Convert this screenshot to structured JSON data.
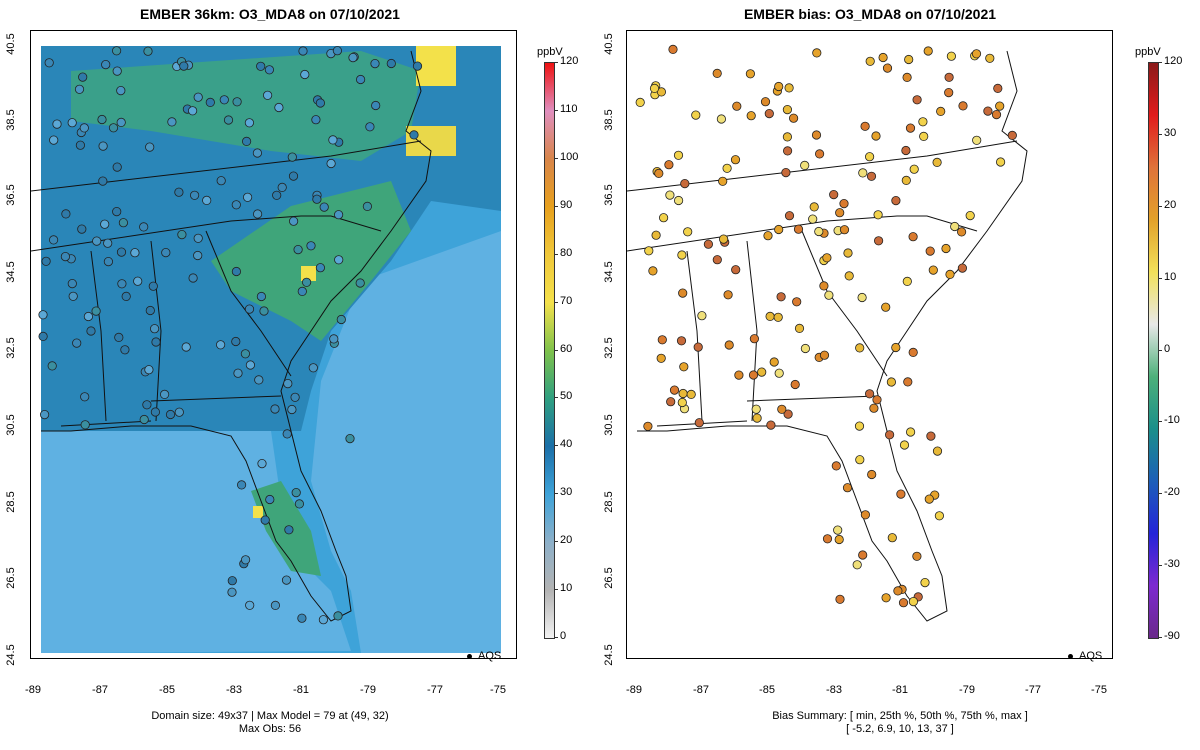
{
  "left": {
    "title": "EMBER 36km: O3_MDA8 on 07/10/2021",
    "footer_line1": "Domain size: 49x37 | Max Model = 79 at (49, 32)",
    "footer_line2": "Max Obs: 56",
    "legend_label": "AQS",
    "colorbar": {
      "unit": "ppbV",
      "ticks": [
        "120",
        "110",
        "100",
        "90",
        "80",
        "70",
        "60",
        "50",
        "40",
        "30",
        "20",
        "10",
        "0"
      ],
      "stops": [
        "#ee1111",
        "#e08fbf",
        "#d8854a",
        "#e7a01d",
        "#f0c83a",
        "#f4e14b",
        "#7fc24b",
        "#2f9f80",
        "#1b6fa8",
        "#3ea3d9",
        "#8db0c9",
        "#b3b3b3",
        "#f2f2f2"
      ]
    }
  },
  "right": {
    "title": "EMBER bias: O3_MDA8 on 07/10/2021",
    "footer_line1": "Bias Summary: [ min, 25th %, 50th %, 75th %, max ]",
    "footer_line2": "[ -5.2,   6.9,   10,   13,   37 ]",
    "legend_label": "AQS",
    "colorbar": {
      "unit": "ppbV",
      "ticks": [
        "120",
        "30",
        "20",
        "10",
        "0",
        "-10",
        "-20",
        "-30",
        "-90"
      ],
      "stops": [
        "#8b1a1a",
        "#e11c1c",
        "#e0733a",
        "#e2a12a",
        "#f2e15a",
        "#e8e8e8",
        "#4db07a",
        "#1b8f8a",
        "#1d5fb8",
        "#2424d8",
        "#7d2ad0",
        "#6a2a8a"
      ]
    }
  },
  "axes": {
    "x_ticks": [
      "-89",
      "-87",
      "-85",
      "-83",
      "-81",
      "-79",
      "-77",
      "-75"
    ],
    "y_ticks": [
      "40.5",
      "38.5",
      "36.5",
      "34.5",
      "32.5",
      "30.5",
      "28.5",
      "26.5",
      "24.5"
    ]
  },
  "map_colors": {
    "ocean_low": "#5fb1e2",
    "land_mid": "#2a86b8",
    "high": "#3fa57a",
    "peak": "#f3e14a",
    "station_fill": "#4a96c2",
    "bias_fill": "#e6a32b"
  }
}
